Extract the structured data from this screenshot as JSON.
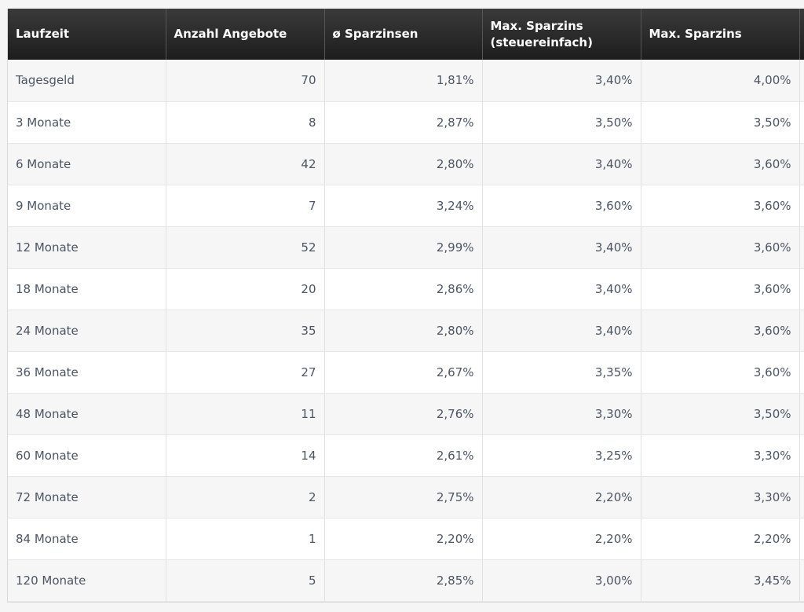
{
  "table": {
    "headers": [
      "Laufzeit",
      "Anzahl Angebote",
      "ø Sparzinsen",
      "Max. Sparzins\n(steuereinfach)",
      "Max. Sparzins"
    ],
    "rows": [
      [
        "Tagesgeld",
        "70",
        "1,81%",
        "3,40%",
        "4,00%"
      ],
      [
        "3 Monate",
        "8",
        "2,87%",
        "3,50%",
        "3,50%"
      ],
      [
        "6 Monate",
        "42",
        "2,80%",
        "3,40%",
        "3,60%"
      ],
      [
        "9 Monate",
        "7",
        "3,24%",
        "3,60%",
        "3,60%"
      ],
      [
        "12 Monate",
        "52",
        "2,99%",
        "3,40%",
        "3,60%"
      ],
      [
        "18 Monate",
        "20",
        "2,86%",
        "3,40%",
        "3,60%"
      ],
      [
        "24 Monate",
        "35",
        "2,80%",
        "3,40%",
        "3,60%"
      ],
      [
        "36 Monate",
        "27",
        "2,67%",
        "3,35%",
        "3,60%"
      ],
      [
        "48 Monate",
        "11",
        "2,76%",
        "3,30%",
        "3,50%"
      ],
      [
        "60 Monate",
        "14",
        "2,61%",
        "3,25%",
        "3,30%"
      ],
      [
        "72 Monate",
        "2",
        "2,75%",
        "2,20%",
        "3,30%"
      ],
      [
        "84 Monate",
        "1",
        "2,20%",
        "2,20%",
        "2,20%"
      ],
      [
        "120 Monate",
        "5",
        "2,85%",
        "3,00%",
        "3,45%"
      ]
    ]
  },
  "colors": {
    "header_bg": "#2b2b2b",
    "header_text": "#ffffff",
    "row_odd": "#f6f6f6",
    "row_even": "#ffffff",
    "cell_text": "#4b5563"
  }
}
